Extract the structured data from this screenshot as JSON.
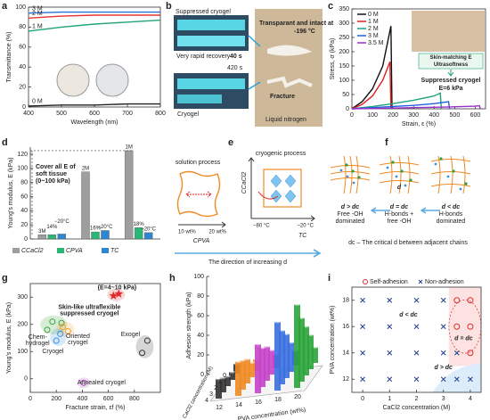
{
  "chart_data": [
    {
      "panel": "a",
      "type": "line",
      "xlabel": "Wavelength (nm)",
      "ylabel": "Transmittance (%)",
      "x": [
        400,
        500,
        600,
        700,
        800
      ],
      "xlim": [
        400,
        800
      ],
      "xticks": [
        400,
        500,
        600,
        700,
        800
      ],
      "ylim": [
        0,
        100
      ],
      "yticks": [
        0,
        20,
        40,
        60,
        80,
        100
      ],
      "series": [
        {
          "name": "3 M",
          "color": "#2a6fd6",
          "values": [
            94,
            95,
            95,
            95,
            95
          ]
        },
        {
          "name": "2 M",
          "color": "#e8332f",
          "values": [
            89,
            91,
            92,
            92,
            92
          ]
        },
        {
          "name": "1 M",
          "color": "#1fa37a",
          "values": [
            76,
            80,
            83,
            85,
            87
          ]
        },
        {
          "name": "0 M",
          "color": "#222222",
          "values": [
            1,
            2,
            2,
            3,
            3
          ]
        }
      ]
    },
    {
      "panel": "c",
      "type": "line",
      "xlabel": "Strain, ε (%)",
      "ylabel": "Stress, σ (kPa)",
      "xlim": [
        0,
        650
      ],
      "xticks": [
        0,
        100,
        200,
        300,
        400,
        500,
        600
      ],
      "ylim": [
        0,
        350
      ],
      "yticks": [
        0,
        50,
        100,
        150,
        200,
        250,
        300,
        350
      ],
      "series": [
        {
          "name": "0 M",
          "color": "#111111",
          "x": [
            0,
            50,
            100,
            150,
            190,
            195
          ],
          "values": [
            0,
            25,
            70,
            150,
            290,
            0
          ]
        },
        {
          "name": "1 M",
          "color": "#e02020",
          "x": [
            0,
            50,
            100,
            150,
            185,
            190
          ],
          "values": [
            0,
            15,
            45,
            100,
            165,
            0
          ]
        },
        {
          "name": "2 M",
          "color": "#1fa37a",
          "x": [
            0,
            100,
            200,
            300,
            400,
            430,
            435
          ],
          "values": [
            0,
            8,
            18,
            30,
            45,
            55,
            0
          ]
        },
        {
          "name": "3 M",
          "color": "#2060e0",
          "x": [
            0,
            100,
            200,
            300,
            400,
            470,
            475
          ],
          "values": [
            0,
            4,
            8,
            12,
            18,
            25,
            0
          ]
        },
        {
          "name": "3.5 M",
          "color": "#9b30c8",
          "x": [
            0,
            150,
            300,
            450,
            600,
            620,
            625
          ],
          "values": [
            0,
            2,
            4,
            6,
            9,
            11,
            0
          ]
        }
      ],
      "annotations": [
        "Skin-matching E",
        "Ultrasoftness",
        "Suppressed cryogel",
        "E=6 kPa"
      ]
    },
    {
      "panel": "d",
      "type": "bar",
      "ylabel": "Young's modulus, E (kPa)",
      "ylim": [
        0,
        130
      ],
      "yticks": [
        0,
        20,
        40,
        60,
        80,
        100,
        120
      ],
      "series": [
        {
          "name": "CCaCl2",
          "color": "#9e9e9e",
          "values": [
            6,
            95,
            125
          ],
          "conditions": [
            "3M",
            "2M",
            "1M"
          ]
        },
        {
          "name": "CPVA",
          "color": "#2bb673",
          "values": [
            6,
            10,
            16
          ],
          "conditions": [
            "14%",
            "16%",
            "18%"
          ]
        },
        {
          "name": "TC",
          "color": "#2f86d0",
          "values": [
            7,
            12,
            9
          ],
          "conditions": [
            "−20°C",
            "−20°C",
            "−20°C"
          ]
        }
      ],
      "annotations": [
        "Cover  all E of",
        "soft tissue",
        "(0~100 kPa)"
      ]
    },
    {
      "panel": "g",
      "type": "scatter",
      "xlabel": "Fracture strain, εf (%)",
      "ylabel": "Young's modulus, E (kPa)",
      "xlim": [
        0,
        1000
      ],
      "xticks": [
        0,
        200,
        400,
        600,
        800
      ],
      "ylim": [
        -50,
        350
      ],
      "yticks": [
        0,
        100,
        200,
        300
      ],
      "series": [
        {
          "label": [
            "Chem-",
            "hydrogel"
          ],
          "color": "#3aa33a",
          "marker": "circle",
          "x": [
            130,
            170,
            240
          ],
          "values": [
            180,
            210,
            205
          ]
        },
        {
          "label": [
            "Oriented",
            "cryogel"
          ],
          "color": "#f0a030",
          "marker": "circle",
          "x": [
            250,
            290
          ],
          "values": [
            190,
            175
          ]
        },
        {
          "label": [
            "Cryogel"
          ],
          "color": "#3a8fe0",
          "marker": "circle",
          "x": [
            200,
            230
          ],
          "values": [
            140,
            165
          ]
        },
        {
          "label": [
            "Exogel"
          ],
          "color": "#333333",
          "marker": "circle",
          "x": [
            860,
            900
          ],
          "values": [
            95,
            140
          ]
        },
        {
          "label": [
            "Annealed cryogel"
          ],
          "color": "#b04ac0",
          "marker": "circle",
          "x": [
            410
          ],
          "values": [
            -15
          ]
        },
        {
          "label": [
            "Skin-like ultraflexible",
            "suppressed cryogel"
          ],
          "color": "#e02a2a",
          "marker": "star",
          "x": [
            640,
            680
          ],
          "values": [
            305,
            312
          ]
        }
      ],
      "annotations": [
        "(E=4~10 kPa)"
      ]
    },
    {
      "panel": "h",
      "type": "bar3d",
      "ylabel": "Adhesion strength (kPa)",
      "xlabel": "PVA concentration (wt%)",
      "zlabel": "CaCl2 concentration (M)",
      "categories": [
        12,
        14,
        16,
        18,
        20
      ],
      "depth_categories": [
        0,
        1,
        2,
        3,
        4
      ],
      "ylim": [
        0,
        100
      ],
      "yticks": [
        0,
        20,
        40,
        60,
        80,
        100
      ],
      "colors": [
        "#333333",
        "#f08a24",
        "#c542c9",
        "#3a6fe0",
        "#2aa33a"
      ],
      "series": [
        {
          "values": [
            10,
            12,
            14,
            15,
            16
          ]
        },
        {
          "values": [
            8,
            15,
            25,
            30,
            35
          ]
        },
        {
          "values": [
            10,
            25,
            35,
            45,
            50
          ]
        },
        {
          "values": [
            15,
            30,
            40,
            55,
            65
          ]
        },
        {
          "values": [
            20,
            35,
            50,
            70,
            85
          ]
        }
      ]
    },
    {
      "panel": "i",
      "type": "scatter",
      "xlabel": "CaCl2 concentration (M)",
      "ylabel": "PVA concentration (wt%)",
      "xlim": [
        -0.4,
        4.4
      ],
      "xticks": [
        0,
        1,
        2,
        3,
        4
      ],
      "ylim": [
        11,
        19
      ],
      "yticks": [
        12,
        14,
        16,
        18
      ],
      "series": [
        {
          "name": "Self-adhesion",
          "color": "#e02a2a",
          "marker": "circle",
          "x": [
            3.5,
            3.5,
            4,
            4,
            4
          ],
          "values": [
            16,
            18,
            14,
            16,
            18
          ]
        },
        {
          "name": "Non-adhesion",
          "color": "#1f3c8c",
          "marker": "cross",
          "x": [
            0,
            0,
            0,
            0,
            1,
            1,
            1,
            1,
            2,
            2,
            2,
            2,
            3,
            3,
            3,
            3,
            3.5,
            3.5,
            4
          ],
          "values": [
            12,
            14,
            16,
            18,
            12,
            14,
            16,
            18,
            12,
            14,
            16,
            18,
            12,
            14,
            16,
            18,
            12,
            14,
            12
          ]
        }
      ],
      "annotations": [
        "d < dc",
        "d = dc",
        "d > dc"
      ]
    }
  ],
  "panels": {
    "b": {
      "label": "b",
      "suppressed": "Suppressed cryogel",
      "recovery": "Very rapid recovery",
      "recovery_time": "40 s",
      "time2": "420 s",
      "cryogel": "Cryogel",
      "intact": "Transparant and intact at",
      "temp": "-196 °C",
      "fracture": "Fracture",
      "nitrogen": "Liquid nitrogen"
    },
    "e": {
      "label": "e",
      "solution": "solution process",
      "cryogenic": "cryogenic process",
      "c_low": "10 wt%",
      "c_high": "20 wt%",
      "c_pva": "CPVA",
      "c_cacl2": "CCaCl2",
      "t_low": "−80 °C",
      "t_high": "−20 °C",
      "t_c": "TC",
      "direction": "The direction of increasing d"
    },
    "f": {
      "label": "f",
      "d": "d",
      "states": [
        [
          "d > dc",
          "Free -OH",
          "dominated"
        ],
        [
          "d = dc",
          "H-bonds +",
          "free -OH"
        ],
        [
          "d < dc",
          "H-bonds",
          "dominated"
        ]
      ],
      "definition": "dc – The critical d between adjacent chains"
    }
  }
}
